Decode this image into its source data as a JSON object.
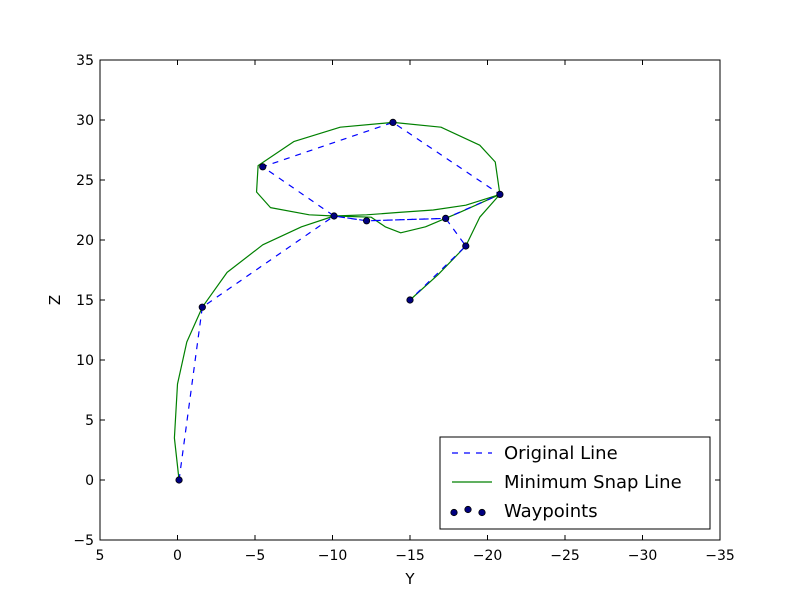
{
  "chart_data": {
    "type": "line",
    "title": "",
    "xlabel": "Y",
    "ylabel": "Z",
    "xlim": [
      5,
      -35
    ],
    "ylim": [
      -5,
      35
    ],
    "x_inverted": true,
    "xticks": [
      5,
      0,
      -5,
      -10,
      -15,
      -20,
      -25,
      -30,
      -35
    ],
    "yticks": [
      -5,
      0,
      5,
      10,
      15,
      20,
      25,
      30,
      35
    ],
    "grid": false,
    "legend_position": "lower right",
    "series": [
      {
        "name": "Original Line",
        "style": "dashed",
        "color": "#0000ff",
        "x": [
          -0.1,
          -1.6,
          -10.1,
          -12.2,
          -17.3,
          -20.8,
          -13.9,
          -5.5,
          -10.1,
          -12.2,
          -17.3,
          -18.6,
          -15.0
        ],
        "y": [
          0.0,
          14.4,
          22.0,
          21.6,
          21.8,
          23.8,
          29.8,
          26.1,
          22.0,
          21.6,
          21.8,
          19.5,
          15.0
        ]
      },
      {
        "name": "Minimum Snap Line",
        "style": "solid",
        "color": "#008000",
        "x": [
          -0.1,
          0.2,
          0.0,
          -0.6,
          -1.6,
          -3.2,
          -5.5,
          -8.0,
          -10.1,
          -12.5,
          -13.4,
          -14.4,
          -16.0,
          -18.2,
          -20.8,
          -20.5,
          -19.5,
          -17.0,
          -13.9,
          -10.5,
          -7.5,
          -5.2,
          -5.1,
          -6.0,
          -8.5,
          -10.1,
          -12.2,
          -14.3,
          -16.5,
          -18.6,
          -20.8,
          -19.5,
          -18.6,
          -16.8,
          -15.0
        ],
        "y": [
          0.0,
          3.5,
          8.0,
          11.5,
          14.4,
          17.3,
          19.6,
          21.1,
          22.0,
          21.9,
          21.1,
          20.6,
          21.1,
          22.3,
          23.8,
          26.5,
          27.9,
          29.4,
          29.8,
          29.4,
          28.2,
          26.2,
          24.0,
          22.7,
          22.1,
          22.0,
          22.1,
          22.3,
          22.5,
          22.9,
          23.8,
          21.9,
          19.5,
          17.1,
          15.0
        ]
      }
    ],
    "scatter": {
      "name": "Waypoints",
      "color": "#000080",
      "edge_color": "#000000",
      "points": [
        {
          "x": -0.1,
          "y": 0.0
        },
        {
          "x": -1.6,
          "y": 14.4
        },
        {
          "x": -10.1,
          "y": 22.0
        },
        {
          "x": -12.2,
          "y": 21.6
        },
        {
          "x": -17.3,
          "y": 21.8
        },
        {
          "x": -20.8,
          "y": 23.8
        },
        {
          "x": -13.9,
          "y": 29.8
        },
        {
          "x": -5.5,
          "y": 26.1
        },
        {
          "x": -18.6,
          "y": 19.5
        },
        {
          "x": -15.0,
          "y": 15.0
        }
      ]
    }
  }
}
